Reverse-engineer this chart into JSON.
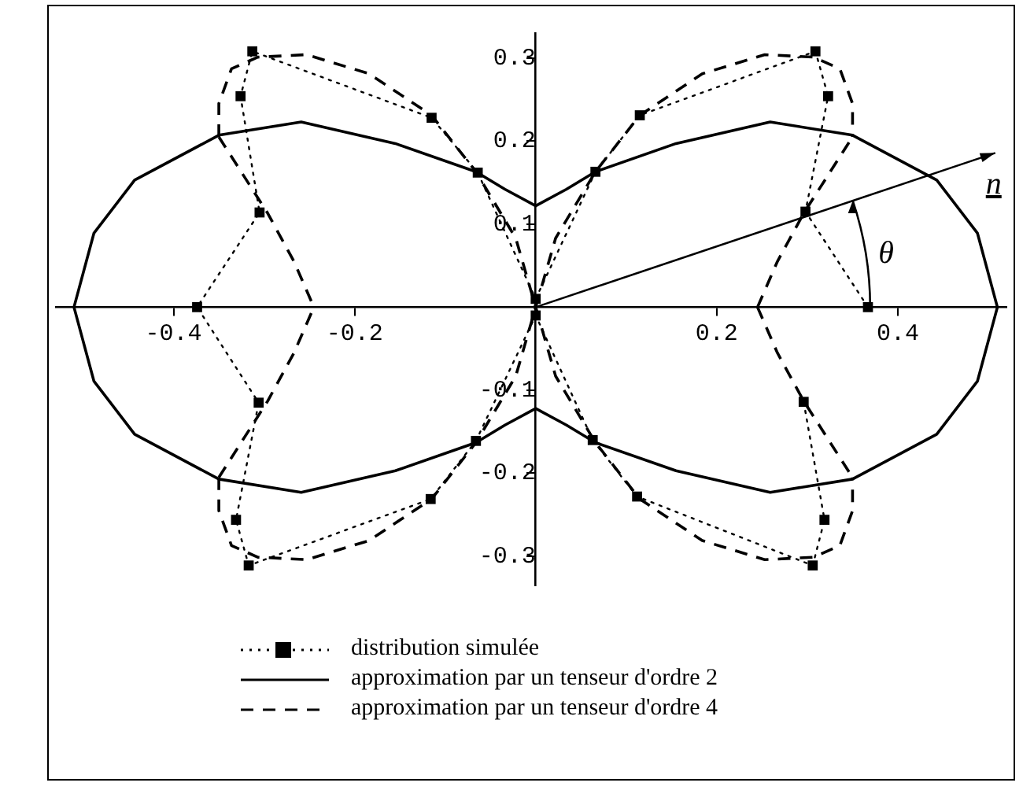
{
  "chart_data": {
    "type": "line",
    "xlim": [
      -0.53,
      0.52
    ],
    "ylim": [
      -0.335,
      0.33
    ],
    "xticks": [
      -0.4,
      -0.2,
      0.2,
      0.4
    ],
    "yticks": [
      -0.3,
      -0.2,
      -0.1,
      0.1,
      0.2,
      0.3
    ],
    "legend": "bottom",
    "annotations": [
      "n",
      "θ"
    ],
    "series": [
      {
        "name": "distribution simulée",
        "color": "#000000",
        "marker": "square",
        "line_style": "dotted",
        "x": [
          0.367,
          0.298,
          0.323,
          0.309,
          0.115,
          0.066,
          0,
          -0.064,
          -0.115,
          -0.313,
          -0.326,
          -0.305,
          -0.374,
          -0.306,
          -0.331,
          -0.317,
          -0.116,
          -0.066,
          0,
          0.063,
          0.112,
          0.306,
          0.319,
          0.296
        ],
        "values": [
          0,
          0.115,
          0.254,
          0.308,
          0.231,
          0.163,
          0.01,
          0.162,
          0.228,
          0.308,
          0.254,
          0.114,
          0,
          -0.115,
          -0.256,
          -0.311,
          -0.231,
          -0.161,
          -0.01,
          -0.16,
          -0.228,
          -0.311,
          -0.256,
          -0.114
        ]
      },
      {
        "name": "approximation par un tenseur d'ordre 2",
        "color": "#000000",
        "marker": "none",
        "line_style": "solid",
        "x": [
          -0.51,
          -0.488,
          -0.443,
          -0.35,
          -0.259,
          -0.155,
          -0.066,
          -0.034,
          0,
          0.034,
          0.066,
          0.155,
          0.259,
          0.35,
          0.443,
          0.488,
          0.51,
          null,
          -0.51,
          -0.488,
          -0.443,
          -0.35,
          -0.259,
          -0.155,
          -0.066,
          -0.034,
          0,
          0.034,
          0.066,
          0.155,
          0.259,
          0.35,
          0.443,
          0.488,
          0.51
        ],
        "values": [
          0,
          0.089,
          0.153,
          0.207,
          0.223,
          0.197,
          0.163,
          0.142,
          0.122,
          0.142,
          0.163,
          0.197,
          0.223,
          0.207,
          0.153,
          0.089,
          0,
          null,
          0,
          -0.089,
          -0.153,
          -0.207,
          -0.223,
          -0.197,
          -0.163,
          -0.142,
          -0.122,
          -0.142,
          -0.163,
          -0.197,
          -0.223,
          -0.207,
          -0.153,
          -0.089,
          0
        ]
      },
      {
        "name": "approximation par un tenseur d'ordre 4",
        "color": "#000000",
        "marker": "none",
        "line_style": "dashed",
        "x": [
          0,
          0.022,
          0.066,
          0.115,
          0.184,
          0.253,
          0.307,
          0.336,
          0.35,
          0.35,
          null,
          0.245,
          0.267,
          0.296,
          0.35,
          null,
          0.245,
          0.267,
          0.296,
          0.35,
          null,
          0,
          0.022,
          0.066,
          0.115,
          0.184,
          0.253,
          0.307,
          0.336,
          0.35,
          0.35,
          null,
          -0.35,
          -0.35,
          -0.336,
          -0.307,
          -0.253,
          -0.184,
          -0.115,
          -0.066,
          -0.022,
          0,
          null,
          -0.35,
          -0.296,
          -0.267,
          -0.245,
          null,
          -0.35,
          -0.296,
          -0.267,
          -0.245,
          null,
          -0.35,
          -0.35,
          -0.336,
          -0.307,
          -0.253,
          -0.184,
          -0.115,
          -0.066,
          -0.022,
          0
        ],
        "values": [
          0,
          0.083,
          0.163,
          0.231,
          0.281,
          0.304,
          0.301,
          0.287,
          0.245,
          0.205,
          null,
          0,
          0.055,
          0.113,
          0.205,
          null,
          0,
          -0.055,
          -0.113,
          -0.205,
          null,
          0,
          -0.083,
          -0.163,
          -0.231,
          -0.281,
          -0.304,
          -0.301,
          -0.287,
          -0.245,
          -0.205,
          null,
          0.205,
          0.245,
          0.287,
          0.301,
          0.304,
          0.281,
          0.231,
          0.163,
          0.083,
          0,
          null,
          0.205,
          0.113,
          0.055,
          0,
          null,
          -0.205,
          -0.113,
          -0.055,
          0,
          null,
          -0.205,
          -0.245,
          -0.287,
          -0.301,
          -0.304,
          -0.281,
          -0.231,
          -0.163,
          -0.083,
          0
        ]
      }
    ]
  }
}
